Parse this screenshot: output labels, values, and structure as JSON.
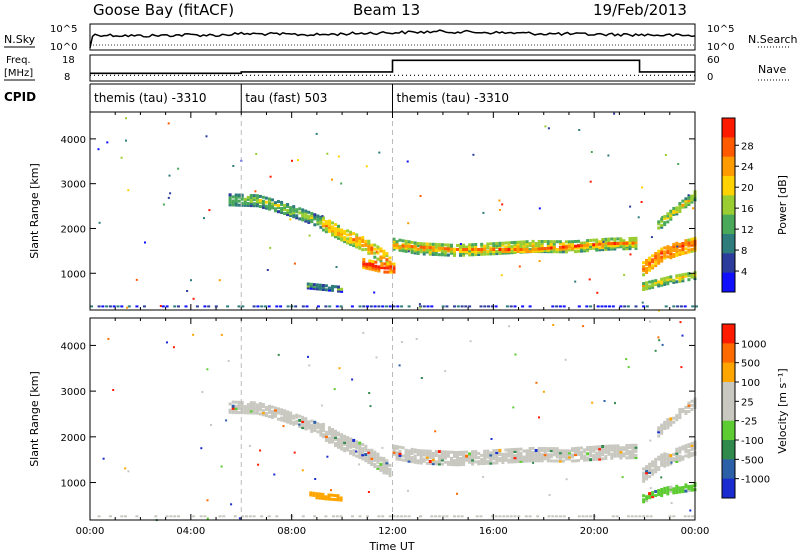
{
  "header": {
    "site": "Goose Bay (fitACF)",
    "beam": "Beam 13",
    "date": "19/Feb/2013"
  },
  "strip_labels": {
    "nsky": "N.Sky",
    "nsearch": "N.Search",
    "freq_line1": "Freq.",
    "freq_line2": "[MHz]",
    "nave": "Nave",
    "cpid": "CPID"
  },
  "chart_data": [
    {
      "type": "line",
      "name": "noise-strip",
      "ylabels_left": [
        "10^5",
        "10^0"
      ],
      "ylabels_right": [
        "10^5",
        "10^0"
      ],
      "x_hours": [
        0,
        0.1,
        0.2,
        2,
        4,
        5,
        6,
        8,
        9,
        11,
        12,
        13,
        14,
        16,
        18,
        20,
        22,
        23,
        24
      ],
      "nsky_level": [
        0,
        0.55,
        0.6,
        0.55,
        0.6,
        0.58,
        0.65,
        0.62,
        0.6,
        0.68,
        0.7,
        0.72,
        0.75,
        0.7,
        0.65,
        0.62,
        0.6,
        0.58,
        0.55
      ]
    },
    {
      "type": "line",
      "name": "freq-nave-strip",
      "ylabels_left": [
        "18",
        "8"
      ],
      "ylabels_right": [
        "60",
        "0"
      ],
      "freq_segments": [
        {
          "from": 0,
          "to": 6,
          "mhz": 10.6
        },
        {
          "from": 6,
          "to": 12,
          "mhz": 11.2
        },
        {
          "from": 12,
          "to": 21.8,
          "mhz": 16.5
        },
        {
          "from": 21.8,
          "to": 24,
          "mhz": 11.2
        }
      ],
      "nave_level": 10
    },
    {
      "type": "table",
      "name": "cpid-strip",
      "segments": [
        {
          "from": 0,
          "to": 6,
          "label": "themis (tau) -3310"
        },
        {
          "from": 6,
          "to": 12,
          "label": "tau (fast) 503"
        },
        {
          "from": 12,
          "to": 24,
          "label": "themis (tau) -3310"
        }
      ]
    },
    {
      "type": "heatmap",
      "name": "power",
      "xlabel": "",
      "ylabel": "Slant Range [km]",
      "xlim": [
        0,
        24
      ],
      "ylim": [
        180,
        4600
      ],
      "yticks": [
        1000,
        2000,
        3000,
        4000
      ],
      "colorbar_label": "Power [dB]",
      "colorbar_ticks": [
        "4",
        "8",
        "12",
        "16",
        "20",
        "24",
        "28"
      ],
      "colorbar_colors": [
        "#1010ff",
        "#2b3c9c",
        "#2f7c7c",
        "#4aa85a",
        "#9acd32",
        "#ffd200",
        "#ff9a00",
        "#ff5a00",
        "#ff1a00"
      ],
      "bands": [
        {
          "t": [
            5.5,
            6.6,
            7.6,
            8.4,
            9.1
          ],
          "r": [
            2680,
            2660,
            2500,
            2340,
            2180
          ],
          "w": 240,
          "lev": 3
        },
        {
          "t": [
            9.2,
            10.0,
            10.8,
            11.5,
            11.95
          ],
          "r": [
            2150,
            1900,
            1700,
            1450,
            1250
          ],
          "w": 300,
          "lev": 5
        },
        {
          "t": [
            10.8,
            11.6,
            12.0
          ],
          "r": [
            1250,
            1150,
            1150
          ],
          "w": 180,
          "lev": 7
        },
        {
          "t": [
            12.0,
            13.0,
            14.5,
            16.0,
            17.5,
            19.0,
            20.5,
            21.7
          ],
          "r": [
            1700,
            1600,
            1560,
            1600,
            1650,
            1640,
            1700,
            1720
          ],
          "w": 260,
          "lev": 4
        },
        {
          "t": [
            12.0,
            14.5,
            17.5,
            20.5,
            21.6
          ],
          "r": [
            1650,
            1560,
            1560,
            1690,
            1700
          ],
          "w": 80,
          "lev": 6
        },
        {
          "t": [
            8.6,
            9.3,
            10.0
          ],
          "r": [
            760,
            720,
            680
          ],
          "w": 110,
          "lev": 2
        },
        {
          "t": [
            21.9,
            22.6,
            23.3,
            24.0
          ],
          "r": [
            1150,
            1450,
            1600,
            1700
          ],
          "w": 300,
          "lev": 6
        },
        {
          "t": [
            21.9,
            23.0,
            24.0
          ],
          "r": [
            750,
            900,
            1000
          ],
          "w": 160,
          "lev": 4
        },
        {
          "t": [
            22.5,
            23.2,
            24.0
          ],
          "r": [
            2100,
            2450,
            2800
          ],
          "w": 200,
          "lev": 4
        }
      ],
      "ground_strip": {
        "from": 0.0,
        "to": 24.0,
        "range": 260,
        "lev": 1
      }
    },
    {
      "type": "heatmap",
      "name": "velocity",
      "xlabel": "Time UT",
      "ylabel": "Slant Range [km]",
      "xlim": [
        0,
        24
      ],
      "ylim": [
        180,
        4600
      ],
      "yticks": [
        1000,
        2000,
        3000,
        4000
      ],
      "xticks": [
        "00:00",
        "04:00",
        "08:00",
        "12:00",
        "16:00",
        "20:00",
        "00:00"
      ],
      "colorbar_label": "Velocity [m s⁻¹]",
      "colorbar_ticks": [
        "1000",
        "500",
        "100",
        "25",
        "-25",
        "-100",
        "-500",
        "-1000"
      ],
      "colorbar_colors": [
        "#1a2ccf",
        "#2b5fa8",
        "#2f8a4c",
        "#5dcc33",
        "#c8c8c0",
        "#c8c8c0",
        "#ffa500",
        "#ff6a00",
        "#ff1a00"
      ],
      "bands": [
        {
          "t": [
            5.5,
            6.6,
            7.6,
            8.4,
            9.1
          ],
          "r": [
            2700,
            2680,
            2520,
            2360,
            2200
          ],
          "w": 260,
          "lev": 4
        },
        {
          "t": [
            9.2,
            10.0,
            10.8,
            11.5,
            11.95
          ],
          "r": [
            2150,
            1900,
            1700,
            1450,
            1250
          ],
          "w": 320,
          "lev": 4
        },
        {
          "t": [
            12.0,
            13.0,
            14.5,
            16.0,
            17.5,
            19.0,
            20.5,
            21.7
          ],
          "r": [
            1700,
            1600,
            1560,
            1600,
            1650,
            1640,
            1700,
            1720
          ],
          "w": 280,
          "lev": 4
        },
        {
          "t": [
            8.7,
            9.3,
            10.0
          ],
          "r": [
            760,
            720,
            690
          ],
          "w": 90,
          "lev": 6
        },
        {
          "t": [
            21.9,
            22.8,
            24.0
          ],
          "r": [
            680,
            850,
            950
          ],
          "w": 140,
          "lev": 3
        },
        {
          "t": [
            21.9,
            22.6,
            23.3,
            24.0
          ],
          "r": [
            1200,
            1500,
            1650,
            1800
          ],
          "w": 280,
          "lev": 4
        },
        {
          "t": [
            22.5,
            23.2,
            24.0
          ],
          "r": [
            2150,
            2500,
            2800
          ],
          "w": 200,
          "lev": 4
        }
      ],
      "ground_strip": {
        "from": 0.0,
        "to": 24.0,
        "range": 260,
        "lev": 4
      }
    }
  ]
}
